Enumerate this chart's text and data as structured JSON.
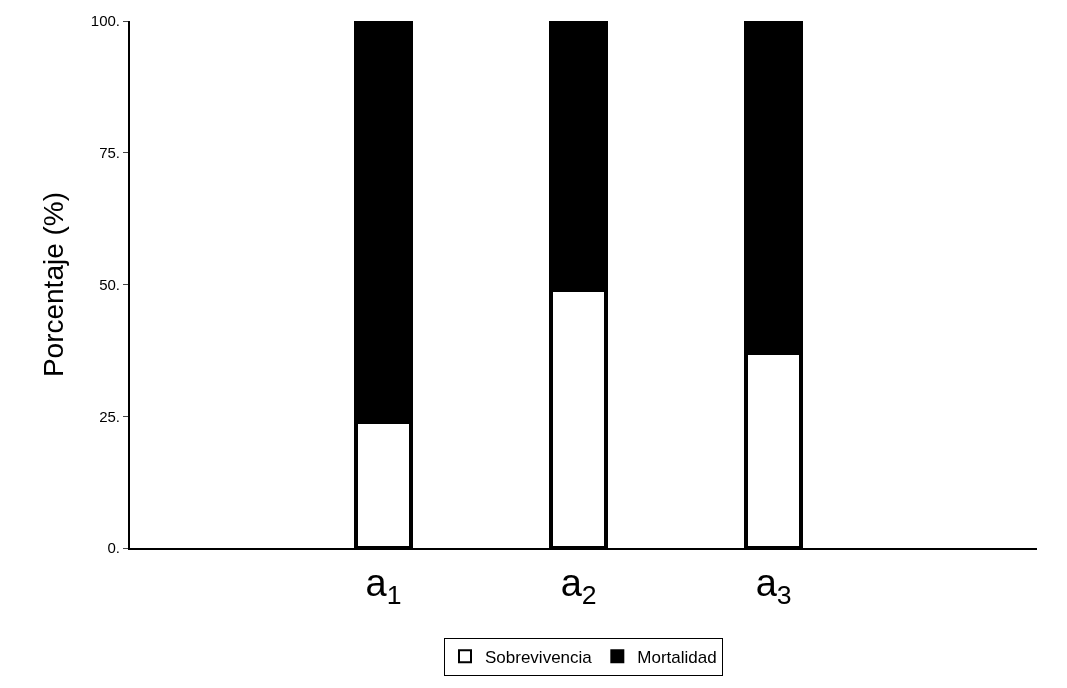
{
  "chart_data": {
    "type": "bar",
    "stacked": true,
    "ylabel": "Porcentaje (%)",
    "categories": [
      "a$_{1}$",
      "a$_{2}$",
      "a$_{3}$"
    ],
    "series": [
      {
        "name": "Sobrevivencia",
        "color": "#ffffff",
        "values": [
          24,
          49,
          37
        ]
      },
      {
        "name": "Mortalidad",
        "color": "#000000",
        "values": [
          76,
          51,
          63
        ]
      }
    ],
    "ylim": [
      0,
      100
    ],
    "yticks": [
      {
        "value": 0,
        "label": "0."
      },
      {
        "value": 25,
        "label": "25."
      },
      {
        "value": 50,
        "label": "50."
      },
      {
        "value": 75,
        "label": "75."
      },
      {
        "value": 100,
        "label": "100."
      }
    ],
    "grid": false,
    "legend": "bottom"
  }
}
